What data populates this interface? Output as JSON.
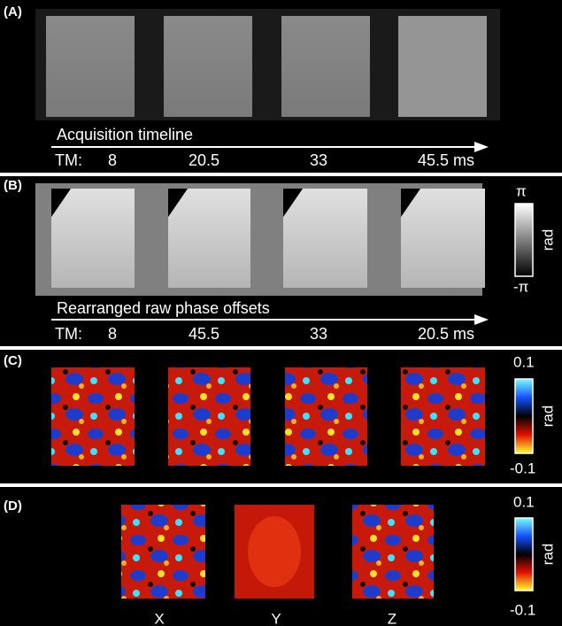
{
  "panels": [
    {
      "label": "(A)",
      "caption": "Acquisition timeline",
      "tm_label": "TM:",
      "tm_values": [
        "8",
        "20.5",
        "33",
        "45.5 ms"
      ]
    },
    {
      "label": "(B)",
      "caption": "Rearranged raw phase offsets",
      "tm_label": "TM:",
      "tm_values": [
        "8",
        "45.5",
        "33",
        "20.5 ms"
      ],
      "colorbar": {
        "max": "π",
        "min": "-π",
        "unit": "rad"
      }
    },
    {
      "label": "(C)",
      "colorbar": {
        "max": "0.1",
        "min": "-0.1",
        "unit": "rad"
      }
    },
    {
      "label": "(D)",
      "colorbar": {
        "max": "0.1",
        "min": "-0.1",
        "unit": "rad"
      },
      "axes": [
        "X",
        "Y",
        "Z"
      ]
    }
  ]
}
